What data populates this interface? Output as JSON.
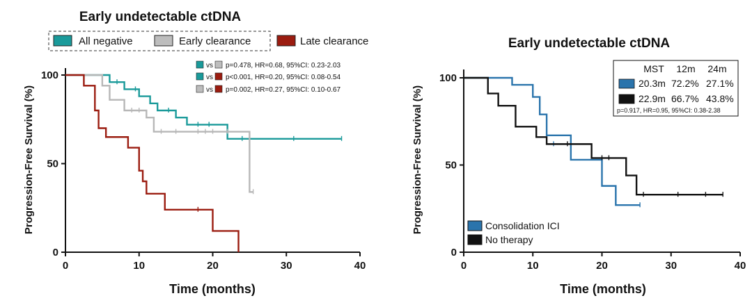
{
  "chart_data": [
    {
      "type": "line",
      "subtype": "kaplan-meier",
      "title": "Early undetectable ctDNA",
      "xlabel": "Time (months)",
      "ylabel": "Progression-Free Survival (%)",
      "xlim": [
        0,
        40
      ],
      "ylim": [
        0,
        100
      ],
      "xticks": [
        "0",
        "10",
        "20",
        "30",
        "40"
      ],
      "yticks": [
        "0",
        "50",
        "100"
      ],
      "legend": [
        "All negative",
        "Early clearance",
        "Late clearance"
      ],
      "comparisons": [
        {
          "group_a": "All negative",
          "vs": "vs",
          "group_b": "Early clearance",
          "text": "p=0.478, HR=0.68, 95%CI: 0.23-2.03"
        },
        {
          "group_a": "All negative",
          "vs": "vs",
          "group_b": "Late clearance",
          "text": "p<0.001, HR=0.20, 95%CI: 0.08-0.54"
        },
        {
          "group_a": "Early clearance",
          "vs": "vs",
          "group_b": "Late clearance",
          "text": "p=0.002, HR=0.27, 95%CI: 0.10-0.67"
        }
      ],
      "series": [
        {
          "name": "All negative",
          "color": "#1a9a9a",
          "steps": [
            [
              0,
              100
            ],
            [
              6,
              96
            ],
            [
              8,
              92
            ],
            [
              10,
              88
            ],
            [
              11.5,
              84
            ],
            [
              12.5,
              80
            ],
            [
              15,
              76
            ],
            [
              16.5,
              72
            ],
            [
              22,
              64
            ],
            [
              37.5,
              64
            ]
          ],
          "censor": [
            [
              7,
              96
            ],
            [
              9.5,
              92
            ],
            [
              14,
              80
            ],
            [
              18,
              72
            ],
            [
              19.5,
              72
            ],
            [
              24,
              64
            ],
            [
              25,
              64
            ],
            [
              31,
              64
            ],
            [
              37.5,
              64
            ]
          ]
        },
        {
          "name": "Early clearance",
          "color": "#b7b7b7",
          "steps": [
            [
              0,
              100
            ],
            [
              5,
              94
            ],
            [
              6,
              86
            ],
            [
              8,
              80
            ],
            [
              11,
              76
            ],
            [
              12,
              68
            ],
            [
              25,
              34
            ],
            [
              25.5,
              34
            ]
          ],
          "censor": [
            [
              9,
              80
            ],
            [
              10,
              80
            ],
            [
              13,
              68
            ],
            [
              15,
              68
            ],
            [
              18,
              68
            ],
            [
              19,
              68
            ],
            [
              20,
              68
            ],
            [
              22,
              68
            ],
            [
              25.5,
              34
            ]
          ]
        },
        {
          "name": "Late clearance",
          "color": "#9b1c10",
          "steps": [
            [
              0,
              100
            ],
            [
              2.5,
              94
            ],
            [
              4,
              80
            ],
            [
              4.5,
              70
            ],
            [
              5.5,
              65
            ],
            [
              8.5,
              59
            ],
            [
              10,
              46
            ],
            [
              10.5,
              40
            ],
            [
              11,
              33
            ],
            [
              13.5,
              24
            ],
            [
              20,
              12
            ],
            [
              23.5,
              0
            ]
          ],
          "censor": [
            [
              18,
              24
            ]
          ]
        }
      ]
    },
    {
      "type": "line",
      "subtype": "kaplan-meier",
      "title": "Early undetectable ctDNA",
      "xlabel": "Time (months)",
      "ylabel": "Progression-Free Survival (%)",
      "xlim": [
        0,
        40
      ],
      "ylim": [
        0,
        100
      ],
      "xticks": [
        "0",
        "10",
        "20",
        "30",
        "40"
      ],
      "yticks": [
        "0",
        "50",
        "100"
      ],
      "legend": [
        "Consolidation ICI",
        "No therapy"
      ],
      "table_headers": [
        "MST",
        "12m",
        "24m"
      ],
      "table_rows": [
        {
          "group": "Consolidation ICI",
          "mst": "20.3m",
          "m12": "72.2%",
          "m24": "27.1%"
        },
        {
          "group": "No therapy",
          "mst": "22.9m",
          "m12": "66.7%",
          "m24": "43.8%"
        }
      ],
      "stats": "p=0.917, HR=0.95, 95%CI: 0.38-2.38",
      "series": [
        {
          "name": "Consolidation ICI",
          "color": "#2a74ac",
          "steps": [
            [
              0,
              100
            ],
            [
              7,
              96
            ],
            [
              10,
              89
            ],
            [
              11,
              79
            ],
            [
              12,
              67
            ],
            [
              15.5,
              53
            ],
            [
              20,
              38
            ],
            [
              22,
              27
            ],
            [
              25.5,
              27
            ]
          ],
          "censor": [
            [
              13,
              62
            ],
            [
              25.5,
              27
            ]
          ]
        },
        {
          "name": "No therapy",
          "color": "#111111",
          "steps": [
            [
              0,
              100
            ],
            [
              3.5,
              91
            ],
            [
              5,
              84
            ],
            [
              7.5,
              72
            ],
            [
              10.5,
              66
            ],
            [
              12,
              62
            ],
            [
              18.5,
              54
            ],
            [
              23.5,
              44
            ],
            [
              25,
              33
            ],
            [
              37.5,
              33
            ]
          ],
          "censor": [
            [
              15,
              62
            ],
            [
              20,
              54
            ],
            [
              21,
              54
            ],
            [
              26,
              33
            ],
            [
              31,
              33
            ],
            [
              35,
              33
            ],
            [
              37.5,
              33
            ]
          ]
        }
      ]
    }
  ]
}
